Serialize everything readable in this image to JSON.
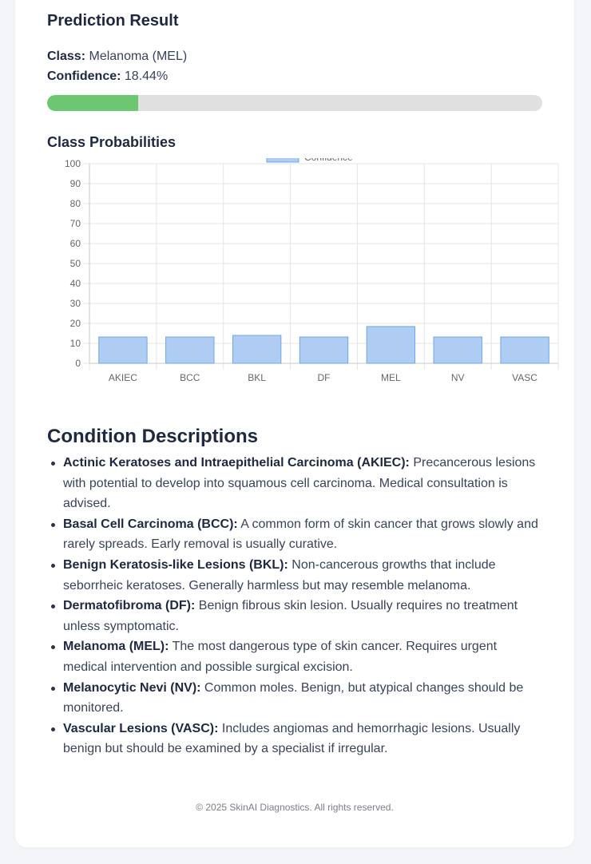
{
  "prediction": {
    "title": "Prediction Result",
    "class_label": "Class:",
    "class_value": "Melanoma (MEL)",
    "confidence_label": "Confidence:",
    "confidence_value": "18.44%",
    "confidence_fraction": 0.1844,
    "bar_color": "#6dc771"
  },
  "chart_section": {
    "title": "Class Probabilities"
  },
  "chart_data": {
    "type": "bar",
    "categories": [
      "AKIEC",
      "BCC",
      "BKL",
      "DF",
      "MEL",
      "NV",
      "VASC"
    ],
    "series": [
      {
        "name": "Confidence",
        "values": [
          13.2,
          13.2,
          14.0,
          13.2,
          18.44,
          13.2,
          13.2
        ]
      }
    ],
    "ylim": [
      0,
      100
    ],
    "yticks": [
      0,
      10,
      20,
      30,
      40,
      50,
      60,
      70,
      80,
      90,
      100
    ],
    "grid": true,
    "legend": "top-center",
    "bar_fill": "#afcdf3",
    "bar_stroke": "#6ea6e8"
  },
  "conditions": {
    "title": "Condition Descriptions",
    "items": [
      {
        "name": "Actinic Keratoses and Intraepithelial Carcinoma (AKIEC):",
        "desc": "Precancerous lesions with potential to develop into squamous cell carcinoma. Medical consultation is advised."
      },
      {
        "name": "Basal Cell Carcinoma (BCC):",
        "desc": "A common form of skin cancer that grows slowly and rarely spreads. Early removal is usually curative."
      },
      {
        "name": "Benign Keratosis-like Lesions (BKL):",
        "desc": "Non-cancerous growths that include seborrheic keratoses. Generally harmless but may resemble melanoma."
      },
      {
        "name": "Dermatofibroma (DF):",
        "desc": "Benign fibrous skin lesion. Usually requires no treatment unless symptomatic."
      },
      {
        "name": "Melanoma (MEL):",
        "desc": "The most dangerous type of skin cancer. Requires urgent medical intervention and possible surgical excision."
      },
      {
        "name": "Melanocytic Nevi (NV):",
        "desc": "Common moles. Benign, but atypical changes should be monitored."
      },
      {
        "name": "Vascular Lesions (VASC):",
        "desc": "Includes angiomas and hemorrhagic lesions. Usually benign but should be examined by a specialist if irregular."
      }
    ]
  },
  "footer": {
    "text": "© 2025 SkinAI Diagnostics. All rights reserved."
  }
}
